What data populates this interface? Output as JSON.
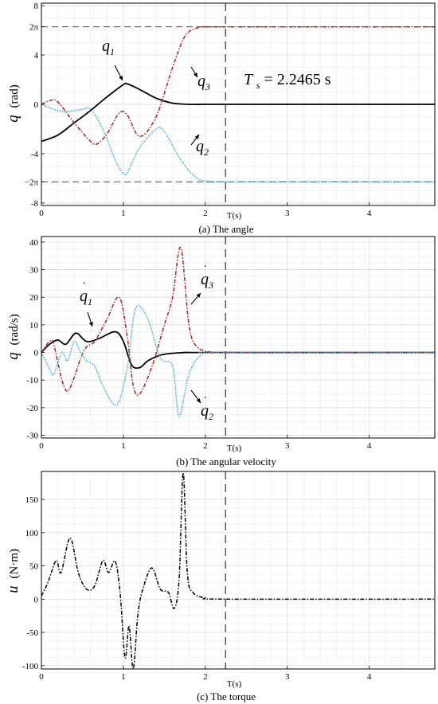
{
  "chart_data": [
    {
      "type": "line",
      "caption": "(a) The angle",
      "ylabel": {
        "var": "q",
        "unit": "(rad)"
      },
      "xlabel": "T(s)",
      "xlim": [
        0,
        4.8
      ],
      "ylim": [
        -8.2,
        8.2
      ],
      "yticks": [
        {
          "value": 8,
          "label": "8"
        },
        {
          "value": 6.283,
          "label": "2π"
        },
        {
          "value": 4,
          "label": "4"
        },
        {
          "value": 0,
          "label": "0"
        },
        {
          "value": -4,
          "label": "-4"
        },
        {
          "value": -6.283,
          "label": "−2π"
        },
        {
          "value": -8,
          "label": "-8"
        }
      ],
      "xticks": [
        0,
        1,
        2,
        3,
        4
      ],
      "grid": true,
      "vline": 2.2465,
      "hlines": [
        6.283,
        -6.283
      ],
      "settling_label": {
        "sym": "T",
        "sub": "s",
        "rest": " = 2.2465 s"
      },
      "annotations": [
        {
          "sym": "q",
          "sub": "1"
        },
        {
          "sym": "q",
          "sub": "3"
        },
        {
          "sym": "q",
          "sub": "2"
        }
      ],
      "series": [
        {
          "key": "q1",
          "color": "#000000",
          "dash": "",
          "x": [
            0,
            0.2,
            0.4,
            0.6,
            0.8,
            1.0,
            1.05,
            1.2,
            1.4,
            1.6,
            1.8,
            2.0,
            2.25,
            4.8
          ],
          "y": [
            -3.0,
            -2.5,
            -1.5,
            -0.5,
            0.6,
            1.6,
            1.65,
            1.2,
            0.5,
            0.1,
            0.0,
            0.0,
            0.0,
            0.0
          ]
        },
        {
          "key": "q3",
          "color": "#b22222",
          "dash": "5,2,1.5,2",
          "x": [
            0,
            0.1,
            0.2,
            0.4,
            0.6,
            0.68,
            0.8,
            0.95,
            1.05,
            1.2,
            1.4,
            1.6,
            1.75,
            1.9,
            2.05,
            2.2,
            4.8
          ],
          "y": [
            0.0,
            0.3,
            0.2,
            -1.5,
            -3.0,
            -3.2,
            -2.4,
            -0.7,
            -0.9,
            -2.6,
            -1.0,
            3.0,
            5.5,
            6.2,
            6.28,
            6.28,
            6.28
          ]
        },
        {
          "key": "q2",
          "color": "#3aa6dc",
          "dash": "1.5,1.5",
          "x": [
            0,
            0.15,
            0.3,
            0.5,
            0.6,
            0.75,
            0.9,
            1.0,
            1.05,
            1.2,
            1.4,
            1.5,
            1.7,
            1.9,
            2.1,
            2.25,
            4.8
          ],
          "y": [
            0.0,
            -0.4,
            -0.6,
            -0.4,
            -0.4,
            -2.0,
            -4.5,
            -5.6,
            -5.5,
            -3.5,
            -2.0,
            -2.2,
            -4.5,
            -6.0,
            -6.28,
            -6.28,
            -6.28
          ]
        }
      ]
    },
    {
      "type": "line",
      "caption": "(b) The angular velocity",
      "ylabel": {
        "var": "q",
        "unit": "(rad/s)"
      },
      "xlabel": "T(s)",
      "xlim": [
        0,
        4.8
      ],
      "ylim": [
        -31,
        42
      ],
      "yticks": [
        {
          "value": 40,
          "label": "40"
        },
        {
          "value": 30,
          "label": "30"
        },
        {
          "value": 20,
          "label": "20"
        },
        {
          "value": 10,
          "label": "10"
        },
        {
          "value": 0,
          "label": "0"
        },
        {
          "value": -10,
          "label": "-10"
        },
        {
          "value": -20,
          "label": "-20"
        },
        {
          "value": -30,
          "label": "-30"
        }
      ],
      "xticks": [
        0,
        1,
        2,
        3,
        4
      ],
      "grid": true,
      "vline": 2.2465,
      "annotations": [
        {
          "sym": "q",
          "sub": "1"
        },
        {
          "sym": "q",
          "sub": "3"
        },
        {
          "sym": "q",
          "sub": "2"
        }
      ],
      "series": [
        {
          "key": "dq1",
          "color": "#000000",
          "dash": "",
          "x": [
            0,
            0.1,
            0.2,
            0.3,
            0.42,
            0.55,
            0.7,
            0.9,
            1.0,
            1.1,
            1.2,
            1.3,
            1.45,
            1.6,
            1.8,
            2.0,
            4.8
          ],
          "y": [
            0.0,
            3.0,
            4.5,
            3.0,
            7.0,
            4.0,
            5.0,
            7.5,
            4.0,
            -4.5,
            -5.5,
            -3.0,
            -1.0,
            -0.3,
            0.0,
            0.0,
            0.0
          ]
        },
        {
          "key": "dq3",
          "color": "#b22222",
          "dash": "5,2,1.5,2",
          "x": [
            0,
            0.1,
            0.15,
            0.25,
            0.32,
            0.4,
            0.48,
            0.55,
            0.65,
            0.8,
            0.95,
            1.05,
            1.12,
            1.2,
            1.35,
            1.5,
            1.6,
            1.7,
            1.8,
            1.9,
            2.1,
            2.3,
            4.8
          ],
          "y": [
            0.0,
            4.0,
            3.0,
            -10.0,
            -14.0,
            -9.0,
            -2.0,
            2.0,
            4.0,
            12.0,
            20.0,
            5.0,
            -12.0,
            -15.0,
            -5.0,
            10.0,
            20.0,
            38.0,
            10.0,
            2.0,
            0.0,
            0.0,
            0.0
          ]
        },
        {
          "key": "dq2",
          "color": "#3aa6dc",
          "dash": "1.5,1.5",
          "x": [
            0,
            0.1,
            0.15,
            0.25,
            0.32,
            0.4,
            0.48,
            0.55,
            0.65,
            0.75,
            0.92,
            1.05,
            1.15,
            1.3,
            1.45,
            1.6,
            1.68,
            1.8,
            1.95,
            2.2,
            4.8
          ],
          "y": [
            0.0,
            -6.0,
            -8.0,
            0.0,
            -3.0,
            4.0,
            0.0,
            -3.0,
            -5.0,
            -12.0,
            -19.0,
            -5.0,
            16.0,
            12.0,
            -2.0,
            -5.0,
            -23.0,
            -8.0,
            -1.0,
            0.0,
            0.0
          ]
        }
      ]
    },
    {
      "type": "line",
      "caption": "(c) The torque",
      "ylabel": {
        "var": "u",
        "unit": "(N·m)"
      },
      "xlabel": "T(s)",
      "xlim": [
        0,
        4.8
      ],
      "ylim": [
        -105,
        192
      ],
      "yticks": [
        {
          "value": 150,
          "label": "150"
        },
        {
          "value": 100,
          "label": "100"
        },
        {
          "value": 50,
          "label": "50"
        },
        {
          "value": 0,
          "label": "0"
        },
        {
          "value": -50,
          "label": "-50"
        },
        {
          "value": -100,
          "label": "-100"
        }
      ],
      "xticks": [
        0,
        1,
        2,
        3,
        4
      ],
      "grid": true,
      "vline": 2.2465,
      "series": [
        {
          "key": "u",
          "color": "#000000",
          "dash": "5,2,1.5,2",
          "x": [
            0,
            0.08,
            0.18,
            0.24,
            0.35,
            0.45,
            0.55,
            0.65,
            0.75,
            0.82,
            0.9,
            0.96,
            1.02,
            1.07,
            1.12,
            1.18,
            1.25,
            1.35,
            1.45,
            1.55,
            1.62,
            1.68,
            1.73,
            1.78,
            1.85,
            2.0,
            2.25,
            4.8
          ],
          "y": [
            5,
            25,
            58,
            40,
            92,
            40,
            15,
            20,
            58,
            40,
            57,
            10,
            -88,
            -40,
            -105,
            -20,
            20,
            47,
            15,
            10,
            -14,
            30,
            190,
            40,
            10,
            2,
            0,
            0
          ]
        }
      ]
    }
  ]
}
